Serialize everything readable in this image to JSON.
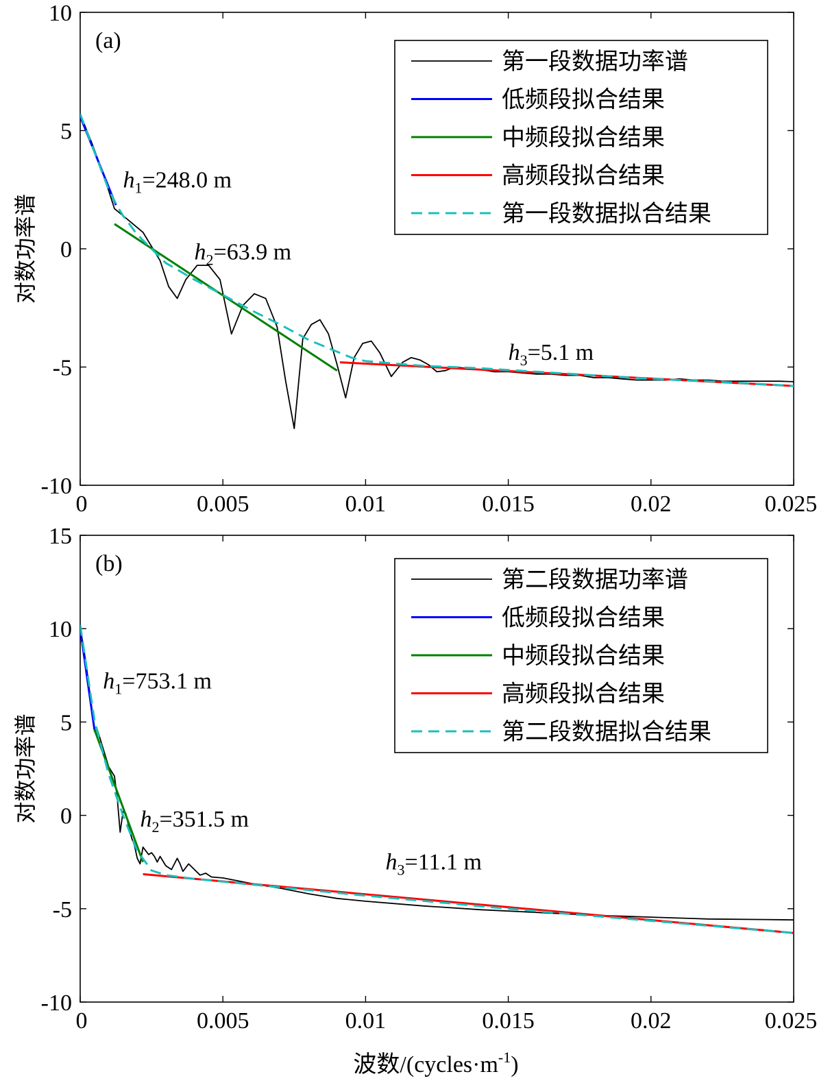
{
  "figure": {
    "xlabel": "波数/(cycles·m",
    "xlabel_sup": "-1",
    "xlabel_close": ")"
  },
  "chart_data": [
    {
      "type": "line",
      "panel_label": "(a)",
      "ylabel": "对数功率谱",
      "xlim": [
        0,
        0.025
      ],
      "ylim": [
        -10,
        10
      ],
      "xticks": [
        0,
        0.005,
        0.01,
        0.015,
        0.02,
        0.025
      ],
      "xtick_labels": [
        "0",
        "0.005",
        "0.01",
        "0.015",
        "0.02",
        "0.025"
      ],
      "yticks": [
        -10,
        -5,
        0,
        5,
        10
      ],
      "ytick_labels": [
        "-10",
        "-5",
        "0",
        "5",
        "10"
      ],
      "legend_position": "top-right",
      "legend": [
        {
          "label": "第一段数据功率谱",
          "color": "#000000",
          "style": "solid"
        },
        {
          "label": "低频段拟合结果",
          "color": "#0000ff",
          "style": "solid"
        },
        {
          "label": "中频段拟合结果",
          "color": "#008000",
          "style": "solid"
        },
        {
          "label": "高频段拟合结果",
          "color": "#ff0000",
          "style": "solid"
        },
        {
          "label": "第一段数据拟合结果",
          "color": "#1abfbf",
          "style": "dashed"
        }
      ],
      "annotations": [
        {
          "prefix": "h",
          "sub": "1",
          "text": "=248.0 m",
          "x": 0.0015,
          "y": 2.6
        },
        {
          "prefix": "h",
          "sub": "2",
          "text": "=63.9 m",
          "x": 0.004,
          "y": -0.45
        },
        {
          "prefix": "h",
          "sub": "3",
          "text": "=5.1 m",
          "x": 0.015,
          "y": -4.7
        }
      ],
      "series": [
        {
          "name": "第一段数据功率谱",
          "color": "#000000",
          "dash": "",
          "width": 1.8,
          "x": [
            0,
            0.0004,
            0.0008,
            0.0012,
            0.0016,
            0.0022,
            0.0028,
            0.0031,
            0.0034,
            0.0037,
            0.0041,
            0.0045,
            0.0049,
            0.0053,
            0.0057,
            0.0061,
            0.0065,
            0.0069,
            0.0072,
            0.0075,
            0.0078,
            0.0081,
            0.0084,
            0.0087,
            0.009,
            0.0093,
            0.0096,
            0.0099,
            0.0102,
            0.0105,
            0.0109,
            0.0113,
            0.0116,
            0.0119,
            0.0122,
            0.0125,
            0.0128,
            0.0131,
            0.0135,
            0.014,
            0.0145,
            0.015,
            0.0155,
            0.016,
            0.0165,
            0.017,
            0.0175,
            0.018,
            0.0185,
            0.019,
            0.0195,
            0.02,
            0.0205,
            0.021,
            0.0215,
            0.022,
            0.0225,
            0.023,
            0.0235,
            0.024,
            0.0245,
            0.025
          ],
          "y": [
            5.7,
            4.5,
            3.2,
            1.7,
            1.3,
            0.7,
            -0.5,
            -1.6,
            -2.1,
            -1.3,
            -0.7,
            -0.7,
            -1.3,
            -3.6,
            -2.4,
            -1.9,
            -2.1,
            -3.3,
            -5.6,
            -7.6,
            -3.8,
            -3.2,
            -3.0,
            -3.6,
            -4.9,
            -6.3,
            -4.6,
            -4.0,
            -3.9,
            -4.4,
            -5.4,
            -4.8,
            -4.6,
            -4.7,
            -4.9,
            -5.2,
            -5.15,
            -5.0,
            -5.05,
            -5.1,
            -5.2,
            -5.2,
            -5.25,
            -5.3,
            -5.3,
            -5.35,
            -5.35,
            -5.45,
            -5.45,
            -5.5,
            -5.55,
            -5.55,
            -5.55,
            -5.5,
            -5.55,
            -5.55,
            -5.6,
            -5.6,
            -5.6,
            -5.6,
            -5.6,
            -5.62
          ]
        },
        {
          "name": "低频段拟合结果",
          "color": "#0000ff",
          "dash": "",
          "width": 3,
          "x": [
            0,
            0.00125
          ],
          "y": [
            5.6,
            1.85
          ]
        },
        {
          "name": "中频段拟合结果",
          "color": "#008000",
          "dash": "",
          "width": 3,
          "x": [
            0.0012,
            0.009
          ],
          "y": [
            1.05,
            -5.15
          ]
        },
        {
          "name": "高频段拟合结果",
          "color": "#ff0000",
          "dash": "",
          "width": 3,
          "x": [
            0.0091,
            0.025
          ],
          "y": [
            -4.8,
            -5.8
          ]
        },
        {
          "name": "第一段数据拟合结果",
          "color": "#1abfbf",
          "dash": "16,9",
          "width": 3,
          "x": [
            0,
            0.0005,
            0.001,
            0.0013,
            0.0015,
            0.002,
            0.003,
            0.004,
            0.005,
            0.006,
            0.007,
            0.008,
            0.009,
            0.0095,
            0.01,
            0.011,
            0.012,
            0.014,
            0.016,
            0.018,
            0.02,
            0.022,
            0.025
          ],
          "y": [
            5.7,
            4.1,
            2.5,
            1.8,
            1.4,
            0.6,
            -0.6,
            -1.3,
            -1.95,
            -2.6,
            -3.2,
            -3.85,
            -4.35,
            -4.6,
            -4.75,
            -4.85,
            -4.95,
            -5.05,
            -5.2,
            -5.35,
            -5.5,
            -5.6,
            -5.8
          ]
        }
      ]
    },
    {
      "type": "line",
      "panel_label": "(b)",
      "ylabel": "对数功率谱",
      "xlim": [
        0,
        0.025
      ],
      "ylim": [
        -10,
        15
      ],
      "xticks": [
        0,
        0.005,
        0.01,
        0.015,
        0.02,
        0.025
      ],
      "xtick_labels": [
        "0",
        "0.005",
        "0.01",
        "0.015",
        "0.02",
        "0.025"
      ],
      "yticks": [
        -10,
        -5,
        0,
        5,
        10,
        15
      ],
      "ytick_labels": [
        "-10",
        "-5",
        "0",
        "5",
        "10",
        "15"
      ],
      "legend_position": "top-right",
      "legend": [
        {
          "label": "第二段数据功率谱",
          "color": "#000000",
          "style": "solid"
        },
        {
          "label": "低频段拟合结果",
          "color": "#0000ff",
          "style": "solid"
        },
        {
          "label": "中频段拟合结果",
          "color": "#008000",
          "style": "solid"
        },
        {
          "label": "高频段拟合结果",
          "color": "#ff0000",
          "style": "solid"
        },
        {
          "label": "第二段数据拟合结果",
          "color": "#1abfbf",
          "style": "dashed"
        }
      ],
      "annotations": [
        {
          "prefix": "h",
          "sub": "1",
          "text": "=753.1 m",
          "x": 0.0008,
          "y": 6.8
        },
        {
          "prefix": "h",
          "sub": "2",
          "text": "=351.5 m",
          "x": 0.0021,
          "y": -0.6
        },
        {
          "prefix": "h",
          "sub": "3",
          "text": "=11.1 m",
          "x": 0.0107,
          "y": -2.9
        }
      ],
      "series": [
        {
          "name": "第二段数据功率谱",
          "color": "#000000",
          "dash": "",
          "width": 1.8,
          "x": [
            0,
            0.0002,
            0.0004,
            0.0005,
            0.0006,
            0.0008,
            0.001,
            0.0012,
            0.0013,
            0.0014,
            0.0015,
            0.0016,
            0.0017,
            0.0018,
            0.0019,
            0.002,
            0.0021,
            0.0022,
            0.0023,
            0.0024,
            0.0025,
            0.0026,
            0.0027,
            0.0028,
            0.003,
            0.0032,
            0.0034,
            0.0035,
            0.0036,
            0.0038,
            0.004,
            0.0042,
            0.0044,
            0.0046,
            0.005,
            0.006,
            0.007,
            0.008,
            0.009,
            0.01,
            0.012,
            0.014,
            0.016,
            0.018,
            0.02,
            0.022,
            0.024,
            0.025
          ],
          "y": [
            10.1,
            8.2,
            5.8,
            4.5,
            4.6,
            3.6,
            2.6,
            2.1,
            0.9,
            -0.9,
            0.2,
            0.1,
            -0.6,
            -1.2,
            -1.6,
            -2.3,
            -2.6,
            -1.7,
            -1.9,
            -2.1,
            -2.0,
            -2.2,
            -2.5,
            -2.2,
            -2.7,
            -2.9,
            -2.3,
            -2.6,
            -3.0,
            -2.6,
            -2.9,
            -3.2,
            -3.1,
            -3.3,
            -3.35,
            -3.65,
            -3.9,
            -4.2,
            -4.45,
            -4.6,
            -4.85,
            -5.05,
            -5.2,
            -5.35,
            -5.45,
            -5.55,
            -5.58,
            -5.6
          ]
        },
        {
          "name": "低频段拟合结果",
          "color": "#0000ff",
          "dash": "",
          "width": 3,
          "x": [
            0,
            0.0005
          ],
          "y": [
            10.0,
            4.6
          ]
        },
        {
          "name": "中频段拟合结果",
          "color": "#008000",
          "dash": "",
          "width": 3,
          "x": [
            0.0005,
            0.0022
          ],
          "y": [
            4.6,
            -2.5
          ]
        },
        {
          "name": "高频段拟合结果",
          "color": "#ff0000",
          "dash": "",
          "width": 3,
          "x": [
            0.0022,
            0.025
          ],
          "y": [
            -3.15,
            -6.3
          ]
        },
        {
          "name": "第二段数据拟合结果",
          "color": "#1abfbf",
          "dash": "16,9",
          "width": 3,
          "x": [
            0,
            0.0005,
            0.001,
            0.0015,
            0.002,
            0.0025,
            0.003,
            0.004,
            0.006,
            0.01,
            0.015,
            0.02,
            0.025
          ],
          "y": [
            10.2,
            5.1,
            2.2,
            0.0,
            -1.9,
            -2.95,
            -3.2,
            -3.4,
            -3.7,
            -4.3,
            -5.0,
            -5.65,
            -6.3
          ]
        }
      ]
    }
  ]
}
